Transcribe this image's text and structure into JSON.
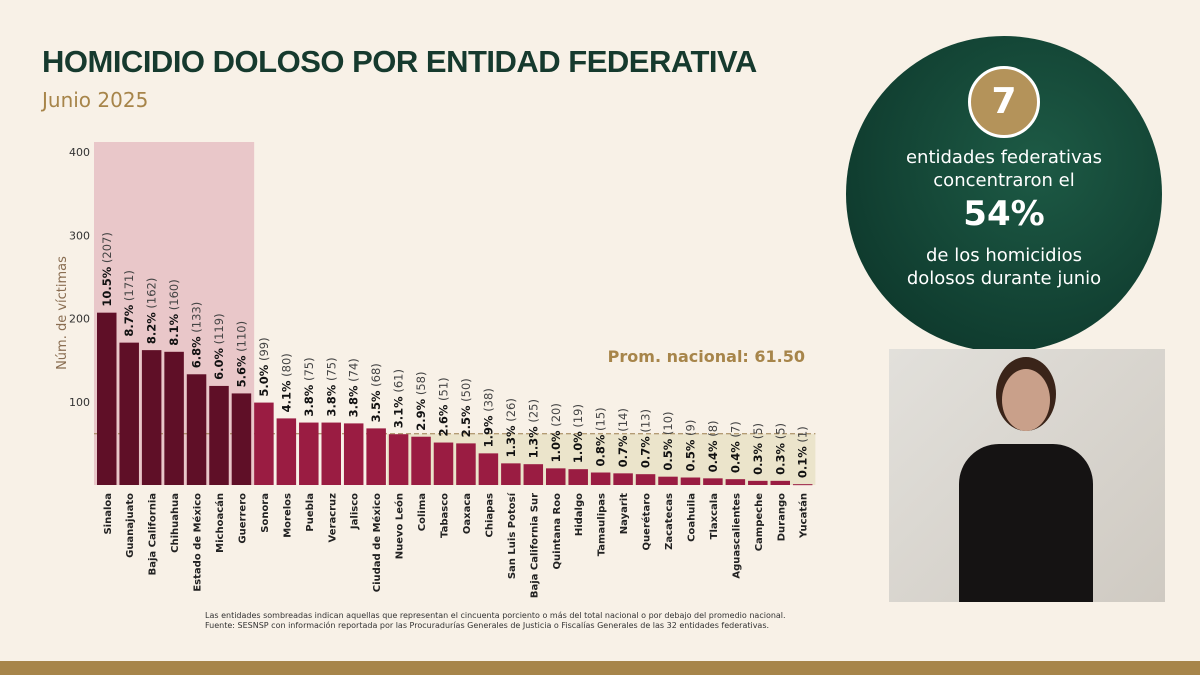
{
  "header": {
    "title": "HOMICIDIO DOLOSO POR ENTIDAD FEDERATIVA",
    "subtitle": "Junio 2025"
  },
  "colors": {
    "dark_bar": "#5f0f27",
    "bar": "#9a1c42",
    "shade_top": "#e9c7c9",
    "shade_bottom": "#ebe4cb",
    "gold": "#a7854a",
    "green": "#163a2e"
  },
  "chart_data": {
    "type": "bar",
    "title": "HOMICIDIO DOLOSO POR ENTIDAD FEDERATIVA",
    "ylabel": "Núm. de víctimas",
    "ylim": [
      0,
      400
    ],
    "yticks": [
      "100",
      "200",
      "300",
      "400"
    ],
    "average_label": "Prom. nacional: 61.50",
    "average": 61.5,
    "categories": [
      "Sinaloa",
      "Guanajuato",
      "Baja California",
      "Chihuahua",
      "Estado de México",
      "Michoacán",
      "Guerrero",
      "Sonora",
      "Morelos",
      "Puebla",
      "Veracruz",
      "Jalisco",
      "Ciudad de México",
      "Nuevo León",
      "Colima",
      "Tabasco",
      "Oaxaca",
      "Chiapas",
      "San Luis Potosí",
      "Baja California Sur",
      "Quintana Roo",
      "Hidalgo",
      "Tamaulipas",
      "Nayarit",
      "Querétaro",
      "Zacatecas",
      "Coahuila",
      "Tlaxcala",
      "Aguascalientes",
      "Campeche",
      "Durango",
      "Yucatán"
    ],
    "values": [
      207,
      171,
      162,
      160,
      133,
      119,
      110,
      99,
      80,
      75,
      75,
      74,
      68,
      61,
      58,
      51,
      50,
      38,
      26,
      25,
      20,
      19,
      15,
      14,
      13,
      10,
      9,
      8,
      7,
      5,
      5,
      1
    ],
    "percent_labels": [
      "10.5%",
      "8.7%",
      "8.2%",
      "8.1%",
      "6.8%",
      "6.0%",
      "5.6%",
      "5.0%",
      "4.1%",
      "3.8%",
      "3.8%",
      "3.8%",
      "3.5%",
      "3.1%",
      "2.9%",
      "2.6%",
      "2.5%",
      "1.9%",
      "1.3%",
      "1.3%",
      "1.0%",
      "1.0%",
      "0.8%",
      "0.7%",
      "0.7%",
      "0.5%",
      "0.5%",
      "0.4%",
      "0.4%",
      "0.3%",
      "0.3%",
      "0.1%"
    ],
    "count_labels": [
      "(207)",
      "(171)",
      "(162)",
      "(160)",
      "(133)",
      "(119)",
      "(110)",
      "(99)",
      "(80)",
      "(75)",
      "(75)",
      "(74)",
      "(68)",
      "(61)",
      "(58)",
      "(51)",
      "(50)",
      "(38)",
      "(26)",
      "(25)",
      "(20)",
      "(19)",
      "(15)",
      "(14)",
      "(13)",
      "(10)",
      "(9)",
      "(8)",
      "(7)",
      "(5)",
      "(5)",
      "(1)"
    ],
    "highlight_top_count": 7
  },
  "summary": {
    "number": "7",
    "line1": "entidades federativas concentraron el",
    "percent": "54%",
    "line2": "de los homicidios dolosos durante junio"
  },
  "footnotes": [
    "Las entidades sombreadas indican aquellas que representan el cincuenta porciento o más del total nacional o por debajo del promedio nacional.",
    "Fuente: SESNSP con información reportada por las Procuradurías Generales de Justicia o Fiscalías Generales de las 32 entidades federativas."
  ]
}
